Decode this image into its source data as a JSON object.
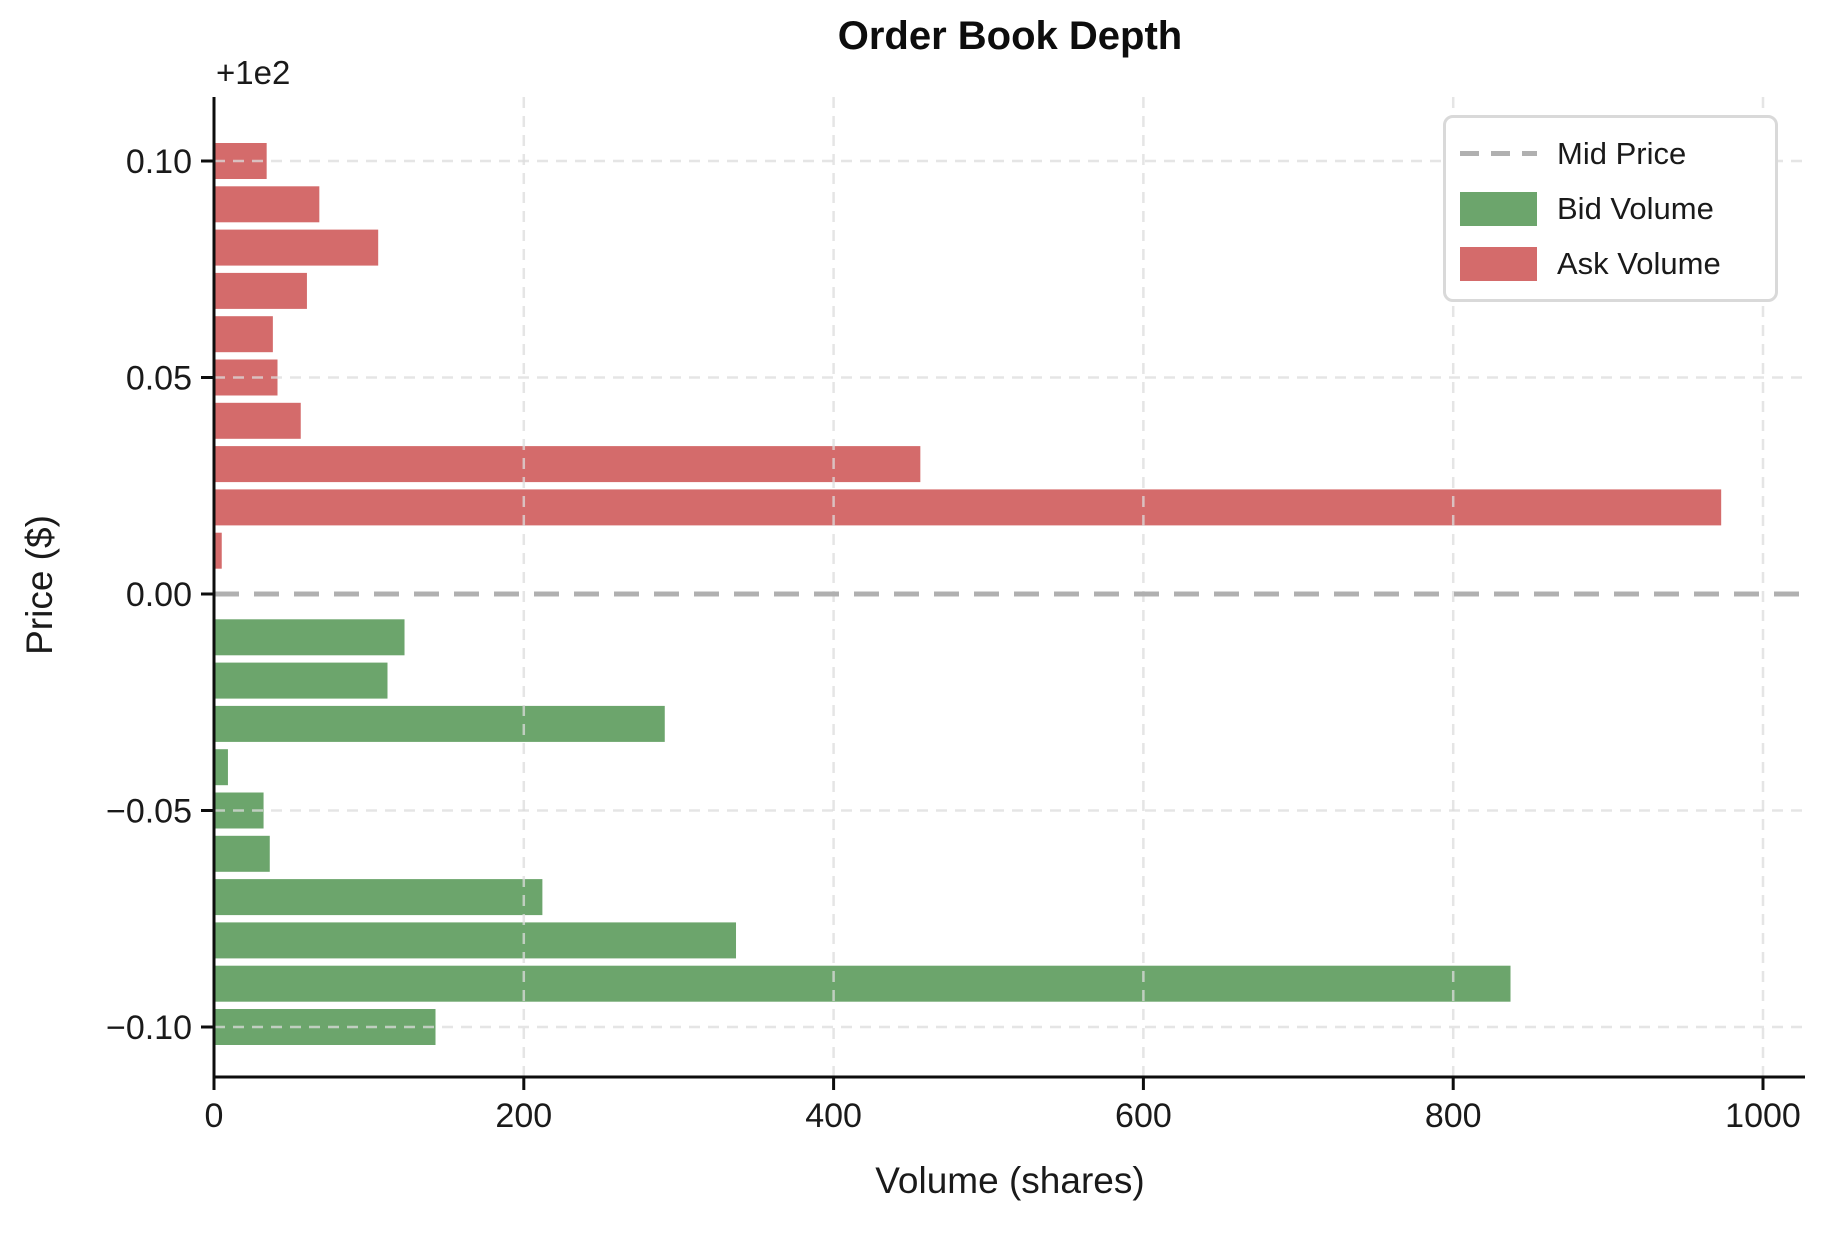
{
  "chart_data": {
    "type": "bar",
    "orientation": "horizontal",
    "title": "Order Book Depth",
    "x_axis": {
      "label": "Volume (shares)",
      "range": [
        0,
        1017
      ],
      "ticks": [
        {
          "value": 0,
          "label": "0"
        },
        {
          "value": 200,
          "label": "200"
        },
        {
          "value": 400,
          "label": "400"
        },
        {
          "value": 600,
          "label": "600"
        },
        {
          "value": 800,
          "label": "800"
        },
        {
          "value": 1000,
          "label": "1000"
        }
      ]
    },
    "y_axis": {
      "label": "Price ($)",
      "offset_text": "+1e2",
      "axis_offset": 100,
      "ticks": [
        {
          "offset": 0.1,
          "label": "0.10"
        },
        {
          "offset": 0.05,
          "label": "0.05"
        },
        {
          "offset": 0.0,
          "label": "0.00"
        },
        {
          "offset": -0.05,
          "label": "−0.05"
        },
        {
          "offset": -0.1,
          "label": "−0.10"
        }
      ]
    },
    "mid_price": {
      "offset": 0.0,
      "color": "#b0b0b0"
    },
    "grid": {
      "on": true,
      "color": "#dcdcdc"
    },
    "series": [
      {
        "name": "Ask Volume",
        "color": "#d46b6b",
        "price_offsets": [
          0.1,
          0.09,
          0.08,
          0.07,
          0.06,
          0.05,
          0.04,
          0.03,
          0.02,
          0.01
        ],
        "volumes": [
          34,
          68,
          106,
          60,
          38,
          41,
          56,
          456,
          973,
          5
        ]
      },
      {
        "name": "Bid Volume",
        "color": "#6ca56c",
        "price_offsets": [
          -0.01,
          -0.02,
          -0.03,
          -0.04,
          -0.05,
          -0.06,
          -0.07,
          -0.08,
          -0.09,
          -0.1
        ],
        "volumes": [
          123,
          112,
          291,
          9,
          32,
          36,
          212,
          337,
          837,
          143
        ]
      }
    ],
    "legend": {
      "position": "upper right",
      "items": [
        {
          "label": "Mid Price",
          "swatch": "dashed-line",
          "color": "#b0b0b0"
        },
        {
          "label": "Bid Volume",
          "swatch": "rect",
          "color": "#6ca56c"
        },
        {
          "label": "Ask Volume",
          "swatch": "rect",
          "color": "#d46b6b"
        }
      ]
    }
  }
}
